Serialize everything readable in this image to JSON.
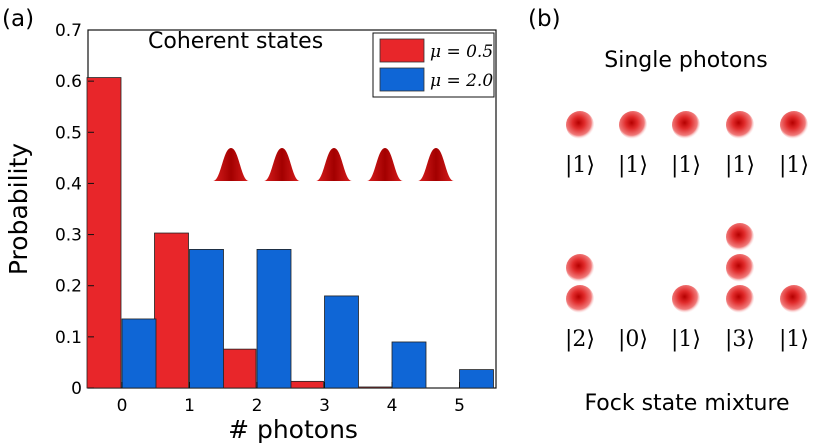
{
  "panel_a": {
    "label": "(a)",
    "title": "Coherent states",
    "xlabel": "# photons",
    "ylabel": "Probability",
    "legend": [
      {
        "label": "μ = 0.5",
        "color": "#e8262a"
      },
      {
        "label": "μ = 2.0",
        "color": "#0f66d6"
      }
    ]
  },
  "panel_b": {
    "label": "(b)",
    "top_title": "Single photons",
    "bottom_title": "Fock state mixture",
    "single_photons": [
      1,
      1,
      1,
      1,
      1
    ],
    "fock_mixture": [
      2,
      0,
      1,
      3,
      1
    ],
    "ket_labels_top": [
      "|1⟩",
      "|1⟩",
      "|1⟩",
      "|1⟩",
      "|1⟩"
    ],
    "ket_labels_bottom": [
      "|2⟩",
      "|0⟩",
      "|1⟩",
      "|3⟩",
      "|1⟩"
    ]
  },
  "colors": {
    "red": "#e8262a",
    "blue": "#0f66d6",
    "photon": "#e02a2a"
  },
  "chart_data": {
    "type": "bar",
    "categories": [
      "0",
      "1",
      "2",
      "3",
      "4",
      "5"
    ],
    "series": [
      {
        "name": "μ = 0.5",
        "values": [
          0.607,
          0.303,
          0.076,
          0.013,
          0.002,
          0.0002
        ],
        "color": "#e8262a"
      },
      {
        "name": "μ = 2.0",
        "values": [
          0.135,
          0.271,
          0.271,
          0.18,
          0.09,
          0.036
        ],
        "color": "#0f66d6"
      }
    ],
    "yticks": [
      "0",
      "0.1",
      "0.2",
      "0.3",
      "0.4",
      "0.5",
      "0.6",
      "0.7"
    ],
    "title": "Coherent states",
    "xlabel": "# photons",
    "ylabel": "Probability",
    "ylim": [
      0,
      0.7
    ],
    "legend_position": "top-right",
    "grid": false
  }
}
